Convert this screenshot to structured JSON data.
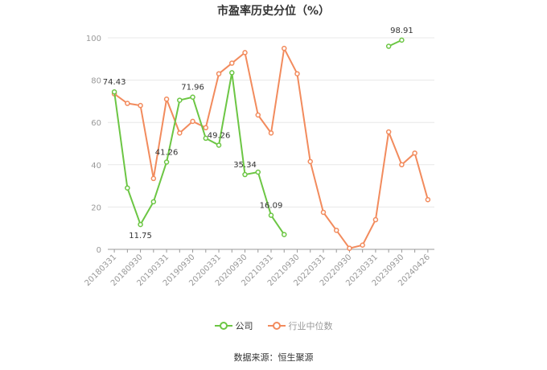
{
  "title": "市盈率历史分位（%）",
  "source": "数据来源：恒生聚源",
  "colors": {
    "company": "#6cc644",
    "industry": "#f28b5d",
    "grid": "#e8e8e8",
    "axis": "#999999",
    "tick_text": "#999999",
    "label_text": "#333333"
  },
  "chart_data": {
    "type": "line",
    "title": "市盈率历史分位（%）",
    "xlabel": "",
    "ylabel": "",
    "ylim": [
      0,
      100
    ],
    "y_ticks": [
      0,
      20,
      40,
      60,
      80,
      100
    ],
    "grid": true,
    "legend_position": "bottom",
    "x": [
      "20180331",
      "20180630",
      "20180930",
      "20181231",
      "20190331",
      "20190630",
      "20190930",
      "20191231",
      "20200331",
      "20200630",
      "20200930",
      "20201231",
      "20210331",
      "20210630",
      "20210930",
      "20211231",
      "20220331",
      "20220630",
      "20220930",
      "20221231",
      "20230331",
      "20230630",
      "20230930",
      "20231231",
      "20240426"
    ],
    "x_tick_labels": [
      "20180331",
      "20180930",
      "20190331",
      "20190930",
      "20200331",
      "20200930",
      "20210331",
      "20210930",
      "20220331",
      "20220930",
      "20230331",
      "20230930",
      "20240426"
    ],
    "series": [
      {
        "name": "公司",
        "values": [
          74.43,
          29,
          11.75,
          22.5,
          41.26,
          70.5,
          71.96,
          52.5,
          49.26,
          83.5,
          35.34,
          36.5,
          16.09,
          7,
          null,
          null,
          null,
          null,
          null,
          null,
          null,
          96,
          98.91,
          null,
          null
        ],
        "labels": [
          {
            "index": 0,
            "text": "74.43"
          },
          {
            "index": 2,
            "text": "11.75"
          },
          {
            "index": 4,
            "text": "41.26"
          },
          {
            "index": 6,
            "text": "71.96"
          },
          {
            "index": 8,
            "text": "49.26"
          },
          {
            "index": 10,
            "text": "35.34"
          },
          {
            "index": 12,
            "text": "16.09"
          },
          {
            "index": 22,
            "text": "98.91"
          }
        ]
      },
      {
        "name": "行业中位数",
        "values": [
          73.5,
          69,
          68,
          33.5,
          71,
          55,
          60.5,
          57.5,
          83,
          88,
          93,
          63.5,
          55,
          95,
          83,
          41.5,
          17.5,
          9,
          0.5,
          2,
          14,
          55.5,
          40,
          45.5,
          23.5
        ]
      }
    ]
  }
}
